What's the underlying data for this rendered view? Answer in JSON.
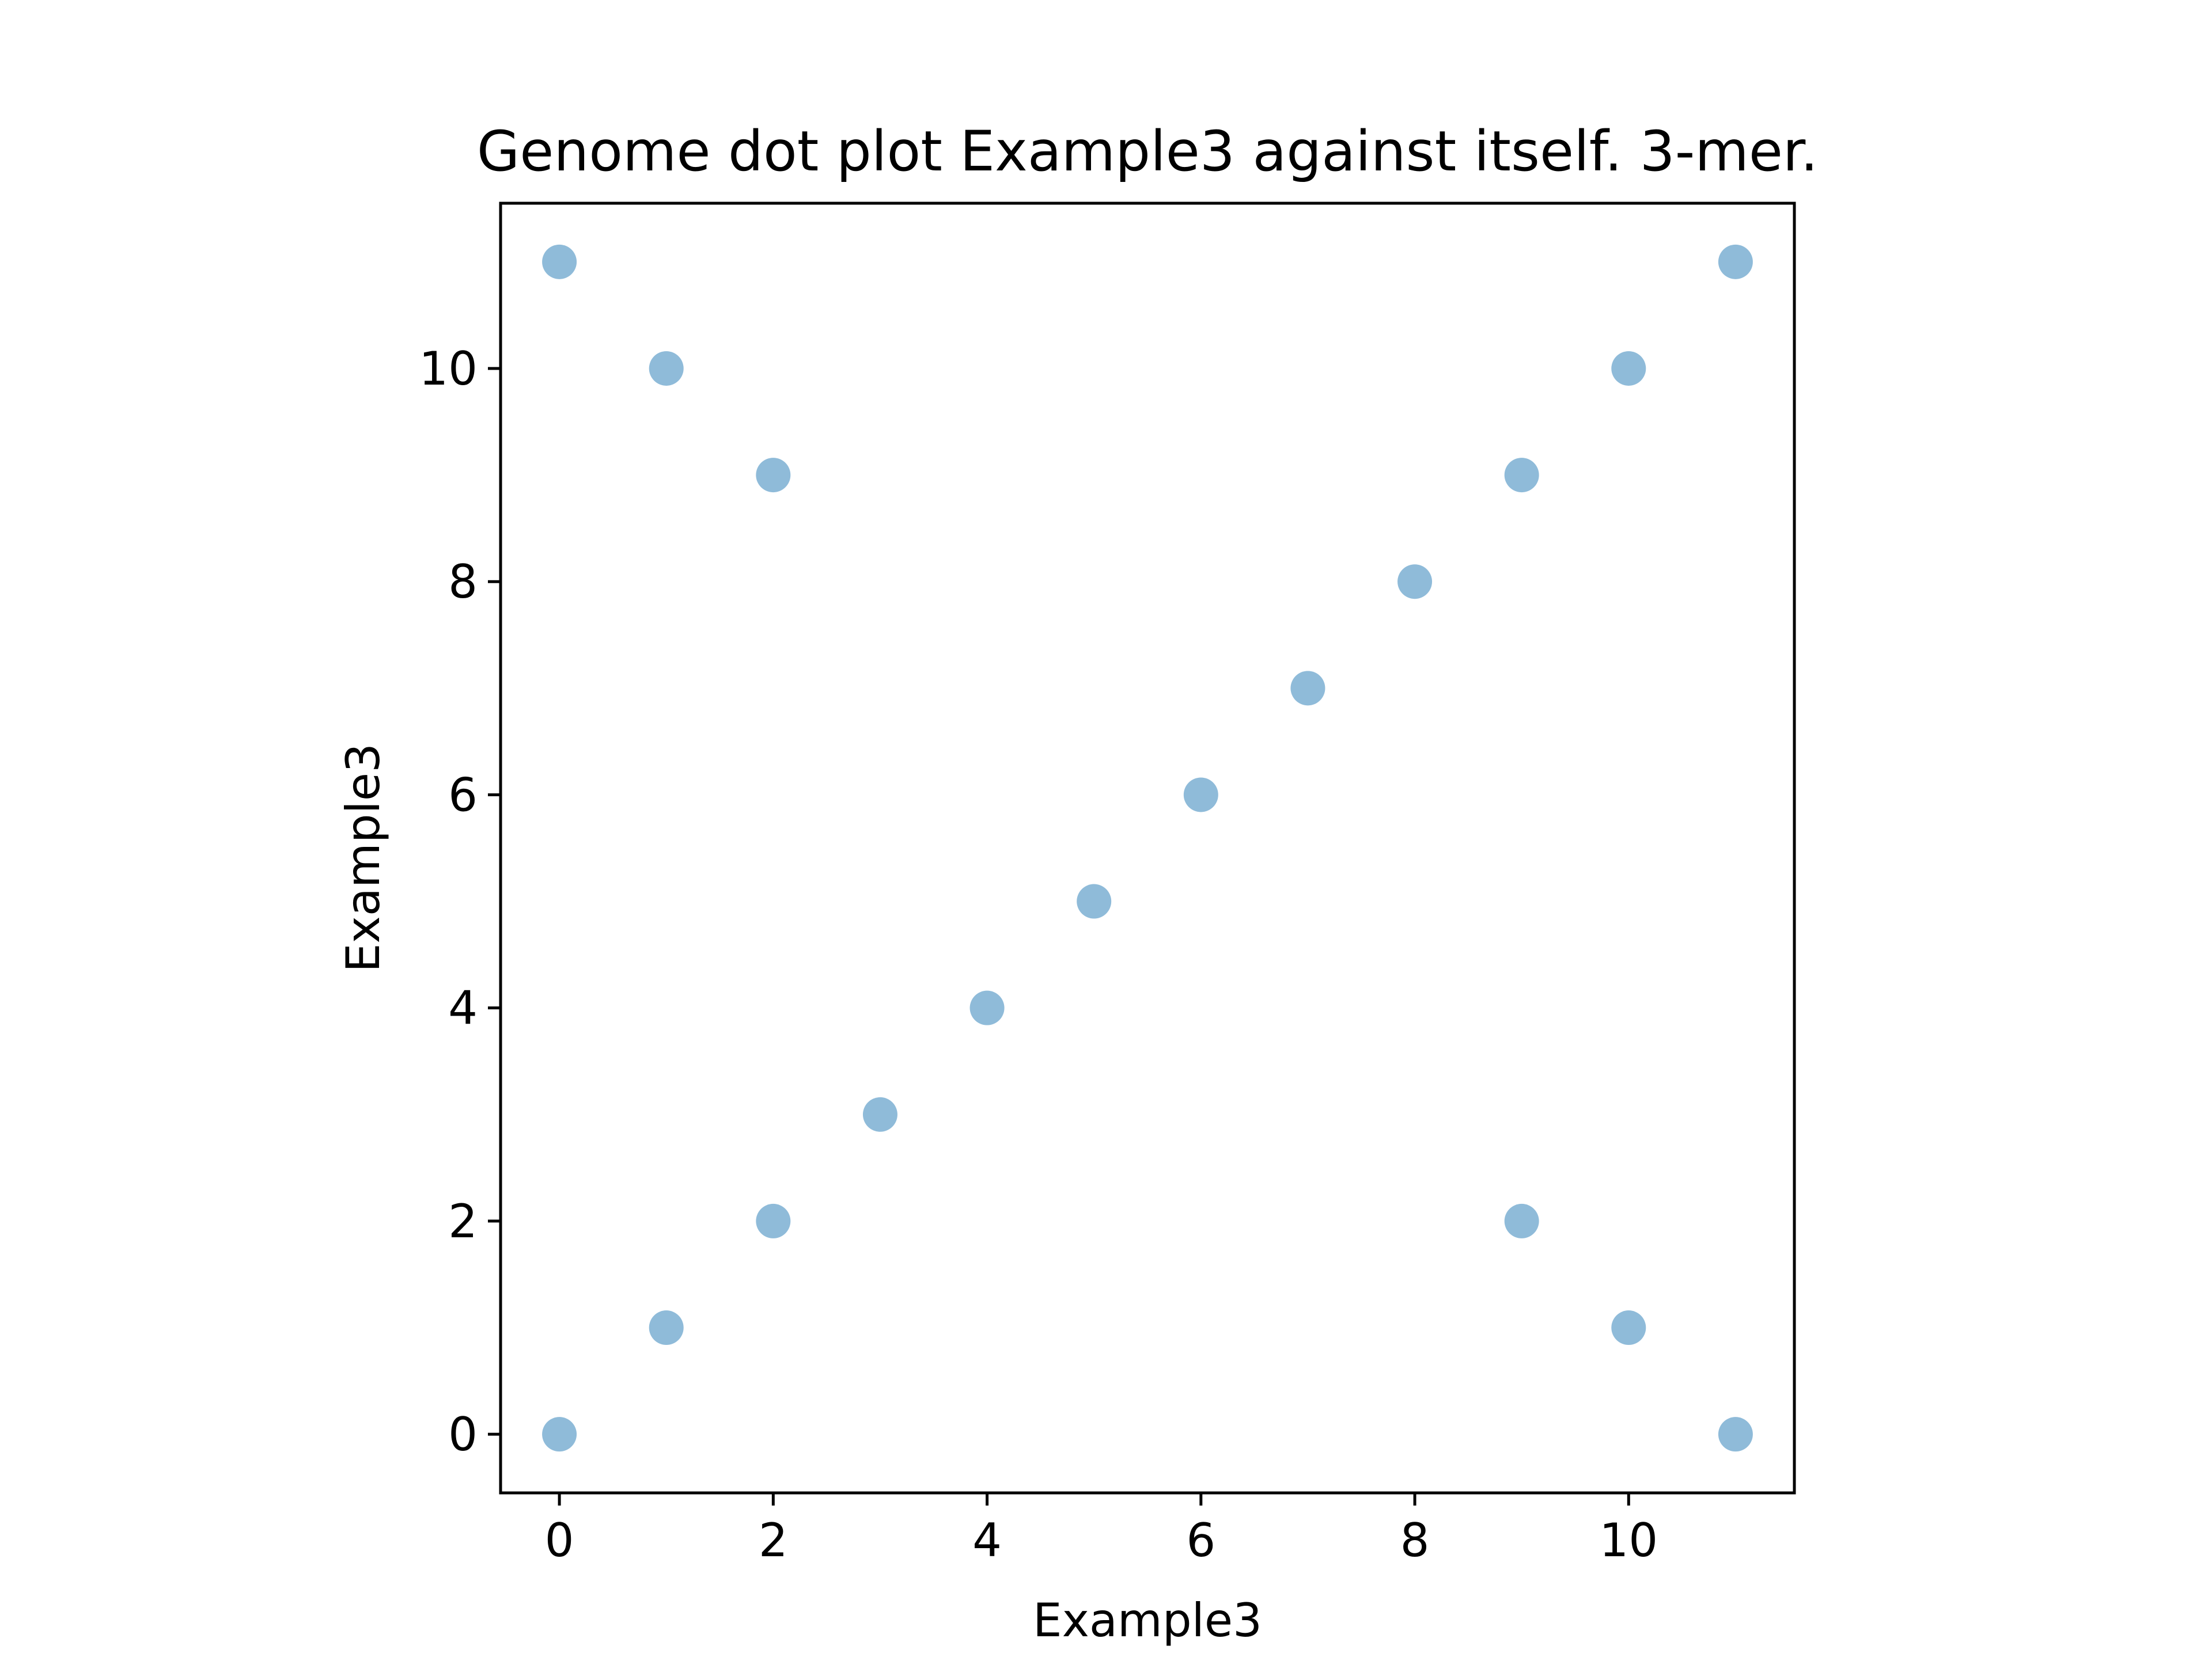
{
  "chart_data": {
    "type": "scatter",
    "title": "Genome dot plot Example3 against itself. 3-mer.",
    "xlabel": "Example3",
    "ylabel": "Example3",
    "xlim": [
      -0.55,
      11.55
    ],
    "ylim": [
      -0.55,
      11.55
    ],
    "xticks": [
      0,
      2,
      4,
      6,
      8,
      10
    ],
    "yticks": [
      0,
      2,
      4,
      6,
      8,
      10
    ],
    "grid": false,
    "marker_color": "#1f77b4",
    "marker_alpha": 0.5,
    "series": [
      {
        "points": [
          [
            0,
            0
          ],
          [
            1,
            1
          ],
          [
            2,
            2
          ],
          [
            3,
            3
          ],
          [
            4,
            4
          ],
          [
            5,
            5
          ],
          [
            6,
            6
          ],
          [
            7,
            7
          ],
          [
            8,
            8
          ],
          [
            9,
            9
          ],
          [
            10,
            10
          ],
          [
            11,
            11
          ],
          [
            0,
            11
          ],
          [
            1,
            10
          ],
          [
            2,
            9
          ],
          [
            9,
            2
          ],
          [
            10,
            1
          ],
          [
            11,
            0
          ]
        ]
      }
    ]
  }
}
